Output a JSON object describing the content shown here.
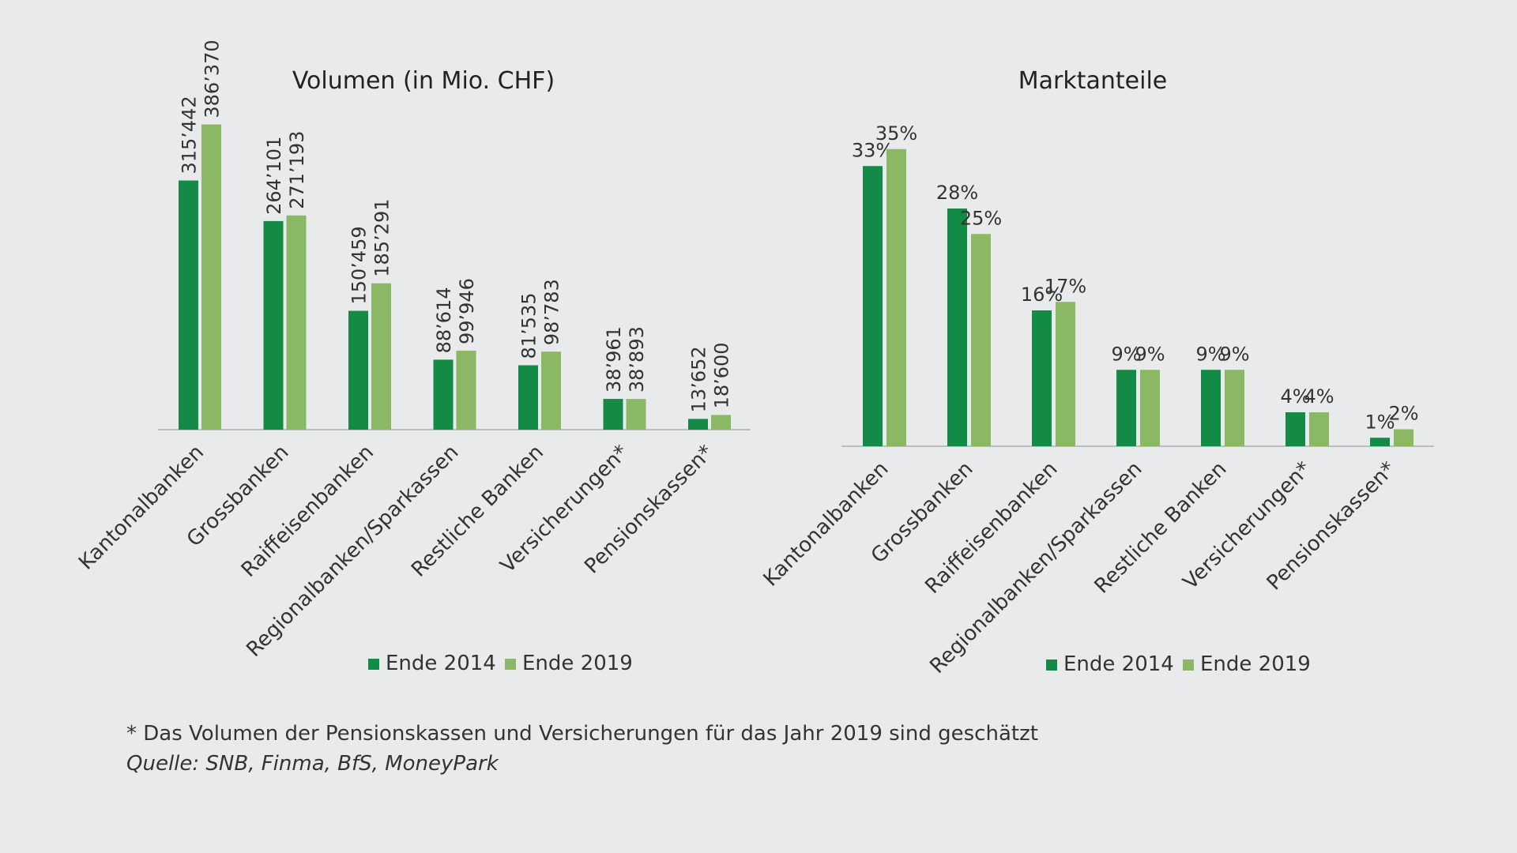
{
  "colors": {
    "series_2014": "#138a45",
    "series_2019": "#8ab864",
    "axis": "#bdbdbd",
    "text": "#222222",
    "background": "#e9eaeb"
  },
  "chart_data": [
    {
      "type": "bar",
      "title": "Volumen (in Mio. CHF)",
      "categories": [
        "Kantonalbanken",
        "Grossbanken",
        "Raiffeisenbanken",
        "Regionalbanken/Sparkassen",
        "Restliche Banken",
        "Versicherungen*",
        "Pensionskassen*"
      ],
      "series": [
        {
          "name": "Ende 2014",
          "values": [
            315442,
            264101,
            150459,
            88614,
            81535,
            38961,
            13652
          ],
          "labels": [
            "315’442",
            "264’101",
            "150’459",
            "88’614",
            "81’535",
            "38’961",
            "13’652"
          ]
        },
        {
          "name": "Ende 2019",
          "values": [
            386370,
            271193,
            185291,
            99946,
            98783,
            38893,
            18600
          ],
          "labels": [
            "386’370",
            "271’193",
            "185’291",
            "99’946",
            "98’783",
            "38’893",
            "18’600"
          ]
        }
      ],
      "ylim": [
        0,
        400000
      ],
      "label_orientation": "vertical",
      "legend_position": "bottom",
      "grid": false
    },
    {
      "type": "bar",
      "title": "Marktanteile",
      "categories": [
        "Kantonalbanken",
        "Grossbanken",
        "Raiffeisenbanken",
        "Regionalbanken/Sparkassen",
        "Restliche Banken",
        "Versicherungen*",
        "Pensionskassen*"
      ],
      "series": [
        {
          "name": "Ende 2014",
          "values": [
            33,
            28,
            16,
            9,
            9,
            4,
            1
          ],
          "labels": [
            "33%",
            "28%",
            "16%",
            "9%",
            "9%",
            "4%",
            "1%"
          ]
        },
        {
          "name": "Ende 2019",
          "values": [
            35,
            25,
            17,
            9,
            9,
            4,
            2
          ],
          "labels": [
            "35%",
            "25%",
            "17%",
            "9%",
            "9%",
            "4%",
            "2%"
          ]
        }
      ],
      "ylim": [
        0,
        40
      ],
      "label_orientation": "horizontal",
      "legend_position": "bottom",
      "grid": false
    }
  ],
  "footnote": {
    "note": "* Das Volumen der Pensionskassen und Versicherungen für das Jahr 2019 sind geschätzt",
    "source": "Quelle: SNB, Finma, BfS, MoneyPark"
  }
}
